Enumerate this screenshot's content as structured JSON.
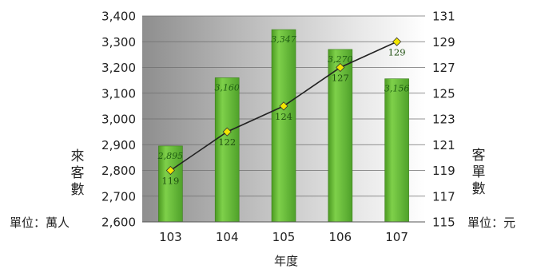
{
  "chart_data": {
    "type": "bar",
    "categories": [
      "103",
      "104",
      "105",
      "106",
      "107"
    ],
    "xlabel": "年度",
    "ylabel_left": "來客數",
    "ylabel_right": "客單數",
    "unit_left": "單位：萬人",
    "unit_right": "單位：元",
    "ylim_left": [
      2600,
      3400
    ],
    "yticks_left": [
      "3,400",
      "3,300",
      "3,200",
      "3,100",
      "3,000",
      "2,900",
      "2,800",
      "2,700",
      "2,600"
    ],
    "ylim_right": [
      115,
      131
    ],
    "yticks_right": [
      "131",
      "129",
      "127",
      "125",
      "123",
      "121",
      "119",
      "117",
      "115"
    ],
    "grid": true,
    "series": [
      {
        "axis": "left",
        "type": "bar",
        "color": "#66bb33",
        "values": [
          2895,
          3160,
          3347,
          3270,
          3156
        ],
        "labels": [
          "2,895",
          "3,160",
          "3,347",
          "3,270",
          "3,156"
        ]
      },
      {
        "axis": "right",
        "type": "line",
        "color": "#222222",
        "marker_color": "#f2e600",
        "values": [
          119,
          122,
          124,
          127,
          129
        ],
        "labels": [
          "119",
          "122",
          "124",
          "127",
          "129"
        ]
      }
    ]
  }
}
